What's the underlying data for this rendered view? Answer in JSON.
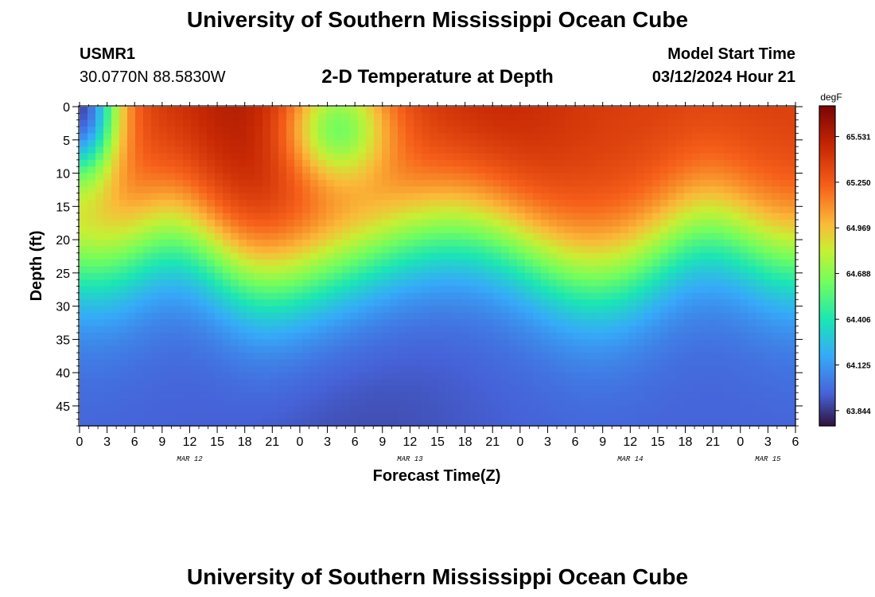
{
  "header": {
    "title": "University of Southern Mississippi Ocean Cube",
    "station_id": "USMR1",
    "station_coords": "30.0770N  88.5830W",
    "plot_title": "2-D Temperature at Depth",
    "model_start_label": "Model Start Time",
    "model_start_value": "03/12/2024 Hour 21"
  },
  "footer": {
    "title": "University of Southern Mississippi Ocean Cube"
  },
  "chart_data": {
    "type": "heatmap",
    "title": "2-D Temperature at Depth",
    "xlabel": "Forecast Time(Z)",
    "ylabel": "Depth (ft)",
    "x_tick_labels": [
      "0",
      "3",
      "6",
      "9",
      "12",
      "15",
      "18",
      "21",
      "0",
      "3",
      "6",
      "9",
      "12",
      "15",
      "18",
      "21",
      "0",
      "3",
      "6",
      "9",
      "12",
      "15",
      "18",
      "21",
      "0",
      "3",
      "6"
    ],
    "x_day_labels": [
      {
        "label": "MAR 12",
        "at_tick": 4
      },
      {
        "label": "MAR 13",
        "at_tick": 12
      },
      {
        "label": "MAR 14",
        "at_tick": 20
      },
      {
        "label": "MAR 15",
        "at_tick": 25
      }
    ],
    "x_range_hours": [
      0,
      78
    ],
    "y_ticks": [
      0,
      5,
      10,
      15,
      20,
      25,
      30,
      35,
      40,
      45
    ],
    "y_range_ft": [
      0,
      48
    ],
    "colorbar": {
      "unit": "degF",
      "min": 63.75,
      "max": 65.72,
      "ticks": [
        "65.531",
        "65.250",
        "64.969",
        "64.688",
        "64.406",
        "64.125",
        "63.844"
      ]
    },
    "grid": false,
    "legend": "colorbar-right"
  }
}
